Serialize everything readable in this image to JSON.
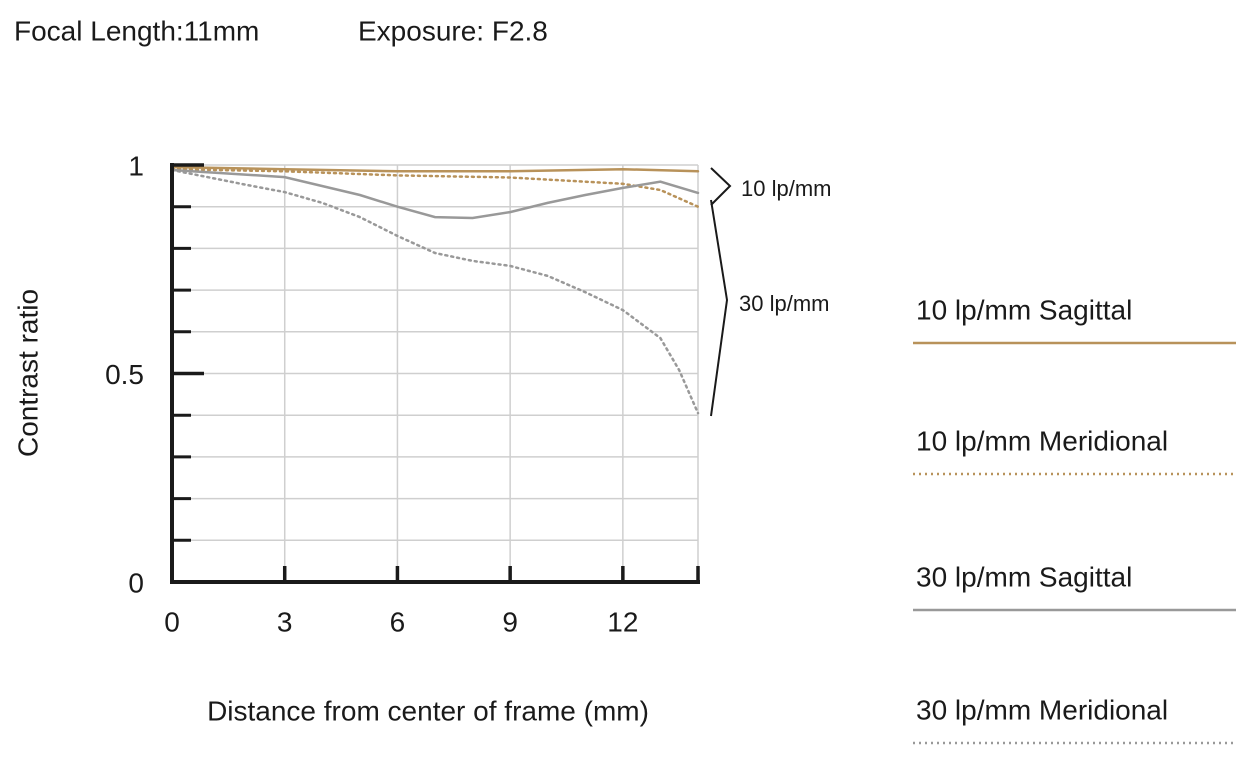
{
  "chart_data": {
    "type": "line",
    "title": "Focal Length:11mm",
    "subtitle": "Exposure: F2.8",
    "x_label": "Distance from center of frame (mm)",
    "y_label": "Contrast ratio",
    "xlim": [
      0,
      14
    ],
    "ylim": [
      0,
      1
    ],
    "xticks": [
      0,
      3,
      6,
      9,
      12
    ],
    "yticks": [
      0,
      0.5,
      1
    ],
    "yticks_minor": [
      0.1,
      0.2,
      0.3,
      0.4,
      0.6,
      0.7,
      0.8,
      0.9
    ],
    "grid": true,
    "annotations": [
      "10 lp/mm",
      "30 lp/mm"
    ],
    "series": [
      {
        "name": "10 lp/mm Sagittal",
        "color": "#b8925a",
        "style": "solid",
        "x": [
          0,
          3,
          6,
          9,
          12,
          14
        ],
        "values": [
          0.995,
          0.99,
          0.985,
          0.985,
          0.99,
          0.985
        ]
      },
      {
        "name": "10 lp/mm Meridional",
        "color": "#b8925a",
        "style": "dotted",
        "x": [
          0,
          3,
          6,
          9,
          12,
          13,
          14
        ],
        "values": [
          0.99,
          0.985,
          0.975,
          0.97,
          0.955,
          0.94,
          0.9
        ]
      },
      {
        "name": "30 lp/mm Sagittal",
        "color": "#999999",
        "style": "solid",
        "x": [
          0,
          3,
          5,
          6,
          7,
          8,
          9,
          10,
          11,
          12,
          13,
          14
        ],
        "values": [
          0.988,
          0.971,
          0.928,
          0.9,
          0.875,
          0.873,
          0.887,
          0.909,
          0.928,
          0.945,
          0.96,
          0.933
        ]
      },
      {
        "name": "30 lp/mm Meridional",
        "color": "#999999",
        "style": "dotted",
        "x": [
          0,
          2,
          3,
          4,
          5,
          6,
          7,
          8,
          9,
          10,
          11,
          12,
          13,
          13.5,
          14
        ],
        "values": [
          0.988,
          0.952,
          0.935,
          0.909,
          0.875,
          0.83,
          0.789,
          0.77,
          0.758,
          0.734,
          0.695,
          0.652,
          0.585,
          0.508,
          0.405
        ]
      }
    ]
  }
}
